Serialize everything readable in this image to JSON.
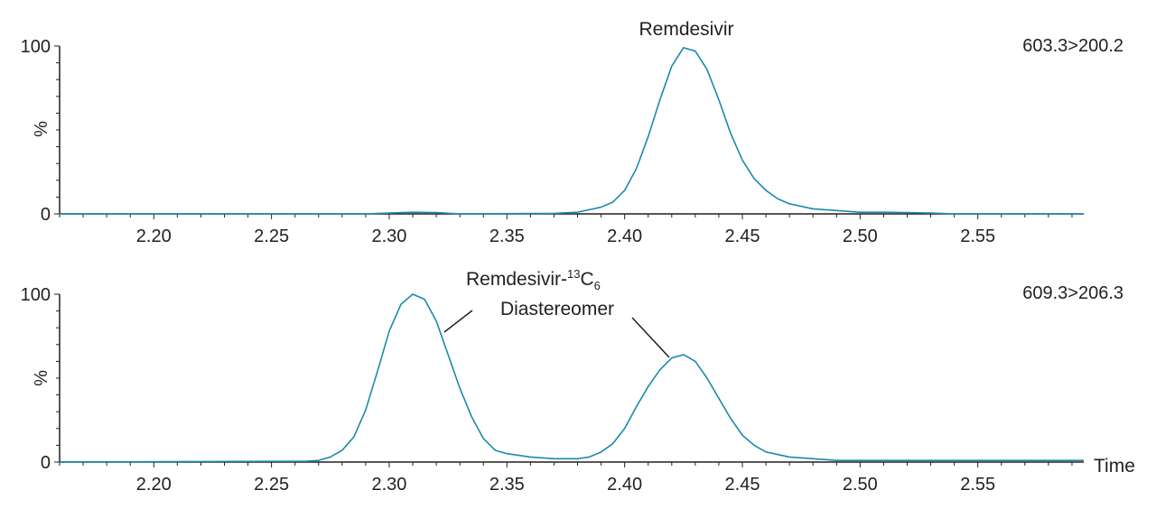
{
  "chart_data": [
    {
      "type": "line",
      "title": "Remdesivir",
      "transition": "603.3>200.2",
      "ylabel": "%",
      "xlabel": "",
      "xlim": [
        2.16,
        2.595
      ],
      "ylim": [
        0,
        100
      ],
      "xticks": [
        "2.20",
        "2.25",
        "2.30",
        "2.35",
        "2.40",
        "2.45",
        "2.50",
        "2.55"
      ],
      "yticks": [
        "0",
        "100"
      ],
      "color": "#1a8bab",
      "series": [
        {
          "x": [
            2.16,
            2.29,
            2.3,
            2.31,
            2.32,
            2.33,
            2.37,
            2.38,
            2.39,
            2.395,
            2.4,
            2.405,
            2.41,
            2.415,
            2.42,
            2.425,
            2.43,
            2.435,
            2.44,
            2.445,
            2.45,
            2.455,
            2.46,
            2.465,
            2.47,
            2.48,
            2.49,
            2.5,
            2.51,
            2.52,
            2.53,
            2.54,
            2.595
          ],
          "y": [
            0,
            0,
            0.5,
            1,
            0.8,
            0,
            0.3,
            1,
            4,
            7,
            14,
            27,
            46,
            68,
            88,
            99,
            97,
            86,
            68,
            48,
            32,
            21,
            14,
            9,
            6,
            3,
            2,
            1,
            1,
            0.8,
            0.5,
            0,
            0
          ]
        }
      ]
    },
    {
      "type": "line",
      "title": "",
      "transition": "609.3>206.3",
      "ylabel": "%",
      "xlabel": "Time",
      "xlim": [
        2.16,
        2.595
      ],
      "ylim": [
        0,
        100
      ],
      "xticks": [
        "2.20",
        "2.25",
        "2.30",
        "2.35",
        "2.40",
        "2.45",
        "2.50",
        "2.55"
      ],
      "yticks": [
        "0",
        "100"
      ],
      "color": "#1a8bab",
      "annotations": [
        {
          "lines": [
            "Remdesivir-",
            "13",
            "C",
            "6"
          ],
          "label": "Remdesivir-13C6"
        },
        {
          "lines": [
            "Diastereomer"
          ],
          "label": "Diastereomer"
        }
      ],
      "series": [
        {
          "x": [
            2.16,
            2.265,
            2.27,
            2.275,
            2.28,
            2.285,
            2.29,
            2.295,
            2.3,
            2.305,
            2.31,
            2.315,
            2.32,
            2.325,
            2.33,
            2.335,
            2.34,
            2.345,
            2.35,
            2.36,
            2.37,
            2.38,
            2.385,
            2.39,
            2.395,
            2.4,
            2.405,
            2.41,
            2.415,
            2.42,
            2.425,
            2.43,
            2.435,
            2.44,
            2.445,
            2.45,
            2.455,
            2.46,
            2.47,
            2.48,
            2.49,
            2.5,
            2.51,
            2.52,
            2.595
          ],
          "y": [
            0,
            0.5,
            1,
            3,
            7,
            15,
            31,
            54,
            78,
            94,
            100,
            97,
            84,
            64,
            44,
            27,
            14,
            7,
            5,
            3,
            2,
            2,
            3,
            6,
            11,
            20,
            33,
            45,
            55,
            62,
            64,
            60,
            50,
            38,
            26,
            16,
            10,
            6,
            3,
            2,
            1,
            1,
            1,
            1,
            1
          ]
        }
      ]
    }
  ]
}
